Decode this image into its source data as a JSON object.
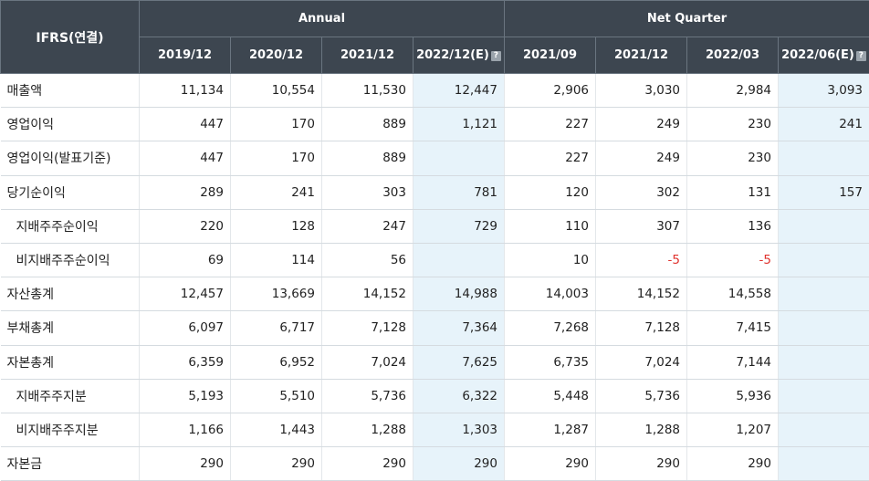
{
  "header": {
    "corner": "IFRS(연결)",
    "groups": [
      "Annual",
      "Net Quarter"
    ],
    "columns": [
      "2019/12",
      "2020/12",
      "2021/12",
      "2022/12(E)",
      "2021/09",
      "2021/12",
      "2022/03",
      "2022/06(E)"
    ]
  },
  "rows": [
    {
      "label": "매출액",
      "values": [
        "11,134",
        "10,554",
        "11,530",
        "12,447",
        "2,906",
        "3,030",
        "2,984",
        "3,093"
      ]
    },
    {
      "label": "영업이익",
      "values": [
        "447",
        "170",
        "889",
        "1,121",
        "227",
        "249",
        "230",
        "241"
      ]
    },
    {
      "label": "영업이익(발표기준)",
      "values": [
        "447",
        "170",
        "889",
        "",
        "227",
        "249",
        "230",
        ""
      ]
    },
    {
      "label": "당기순이익",
      "values": [
        "289",
        "241",
        "303",
        "781",
        "120",
        "302",
        "131",
        "157"
      ]
    },
    {
      "label": "지배주주순이익",
      "values": [
        "220",
        "128",
        "247",
        "729",
        "110",
        "307",
        "136",
        ""
      ]
    },
    {
      "label": "비지배주주순이익",
      "values": [
        "69",
        "114",
        "56",
        "",
        "10",
        "-5",
        "-5",
        ""
      ]
    },
    {
      "label": "자산총계",
      "values": [
        "12,457",
        "13,669",
        "14,152",
        "14,988",
        "14,003",
        "14,152",
        "14,558",
        ""
      ]
    },
    {
      "label": "부채총계",
      "values": [
        "6,097",
        "6,717",
        "7,128",
        "7,364",
        "7,268",
        "7,128",
        "7,415",
        ""
      ]
    },
    {
      "label": "자본총계",
      "values": [
        "6,359",
        "6,952",
        "7,024",
        "7,625",
        "6,735",
        "7,024",
        "7,144",
        ""
      ]
    },
    {
      "label": "지배주주지분",
      "values": [
        "5,193",
        "5,510",
        "5,736",
        "6,322",
        "5,448",
        "5,736",
        "5,936",
        ""
      ]
    },
    {
      "label": "비지배주주지분",
      "values": [
        "1,166",
        "1,443",
        "1,288",
        "1,303",
        "1,287",
        "1,288",
        "1,207",
        ""
      ]
    },
    {
      "label": "자본금",
      "values": [
        "290",
        "290",
        "290",
        "290",
        "290",
        "290",
        "290",
        ""
      ]
    }
  ],
  "colors": {
    "header_bg": "#3d4650",
    "estimate_bg": "#e7f3fa",
    "negative": "#e0332e"
  }
}
